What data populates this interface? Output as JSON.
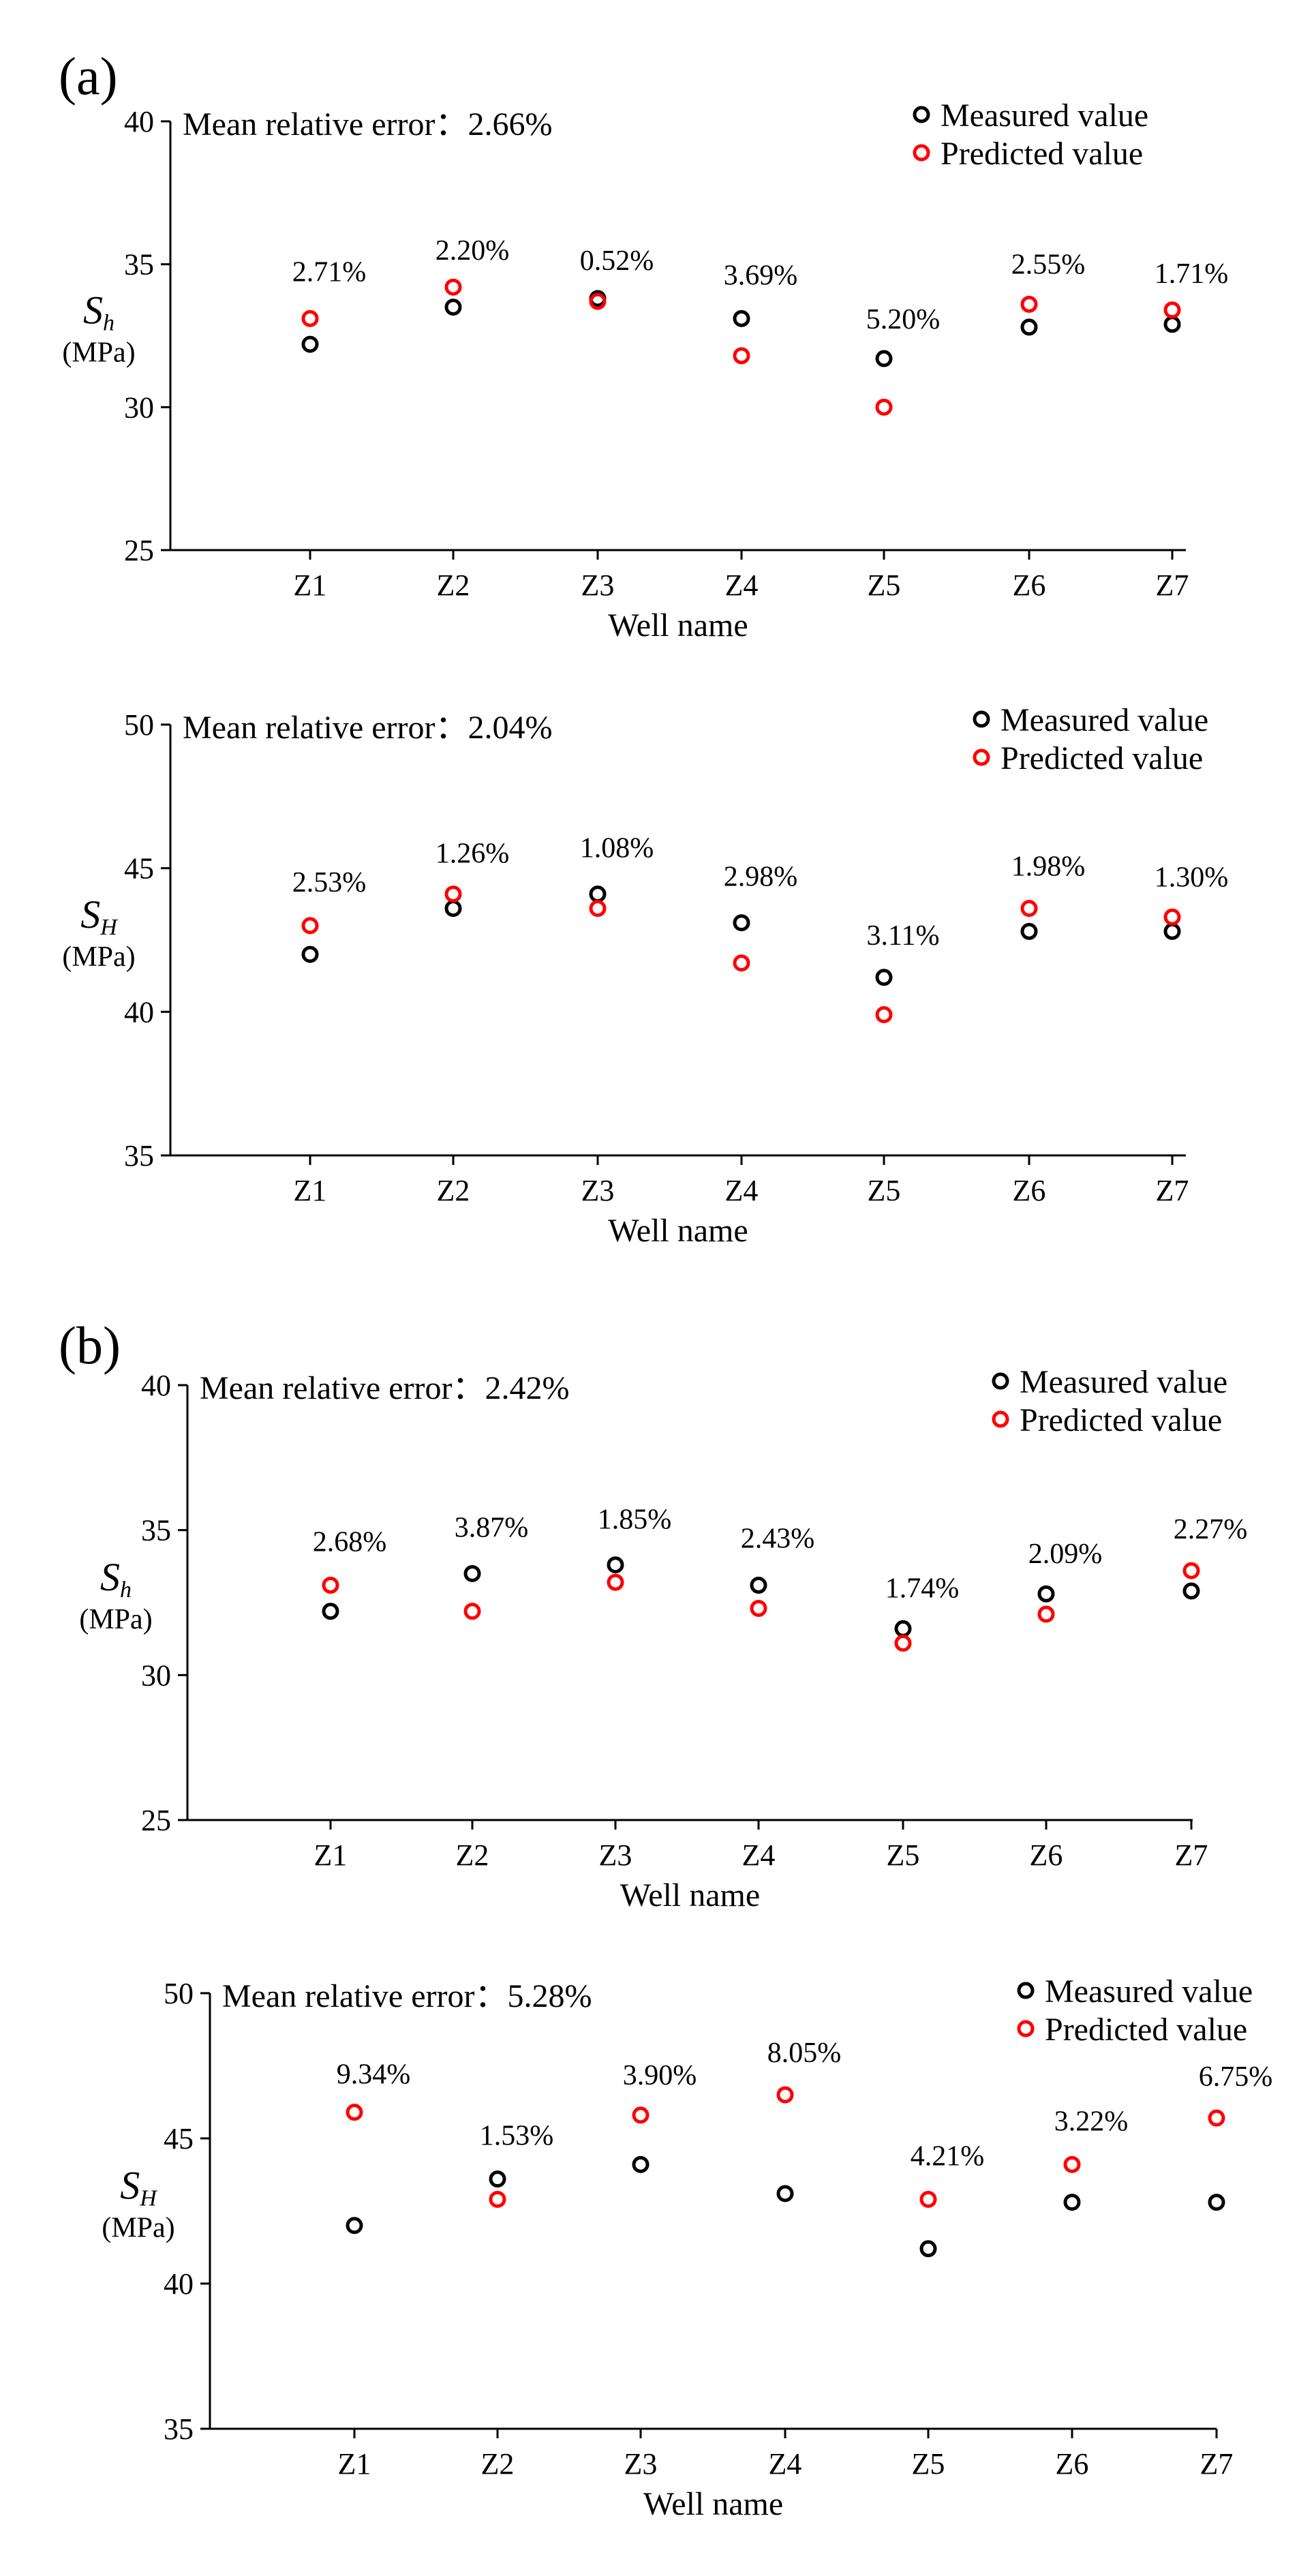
{
  "panel_labels": [
    "(a)",
    "(b)"
  ],
  "chart_data": [
    {
      "type": "scatter",
      "panel": "(a)",
      "annotation_label": "Mean relative error：",
      "annotation_value": "2.66%",
      "ylabel_main": "S",
      "ylabel_sub": "h",
      "ylabel_unit": "(MPa)",
      "xlabel": "Well name",
      "ylim": [
        25,
        40
      ],
      "yticks": [
        "25",
        "30",
        "35",
        "40"
      ],
      "categories": [
        "Z1",
        "Z2",
        "Z3",
        "Z4",
        "Z5",
        "Z6",
        "Z7"
      ],
      "series": [
        {
          "name": "Measured value",
          "color": "#000000",
          "values": [
            32.2,
            33.5,
            33.8,
            33.1,
            31.7,
            32.8,
            32.9
          ]
        },
        {
          "name": "Predicted value",
          "color": "#ff0000",
          "values": [
            33.1,
            34.2,
            33.7,
            31.8,
            30.0,
            33.6,
            33.4
          ]
        }
      ],
      "labels": [
        "2.71%",
        "2.20%",
        "0.52%",
        "3.69%",
        "5.20%",
        "2.55%",
        "1.71%"
      ],
      "legend_position": "top-right"
    },
    {
      "type": "scatter",
      "panel": "(a)",
      "annotation_label": "Mean relative error：",
      "annotation_value": "2.04%",
      "ylabel_main": "S",
      "ylabel_sub": "H",
      "ylabel_unit": "(MPa)",
      "xlabel": "Well name",
      "ylim": [
        35,
        50
      ],
      "yticks": [
        "35",
        "40",
        "45",
        "50"
      ],
      "categories": [
        "Z1",
        "Z2",
        "Z3",
        "Z4",
        "Z5",
        "Z6",
        "Z7"
      ],
      "series": [
        {
          "name": "Measured value",
          "color": "#000000",
          "values": [
            42.0,
            43.6,
            44.1,
            43.1,
            41.2,
            42.8,
            42.8
          ]
        },
        {
          "name": "Predicted value",
          "color": "#ff0000",
          "values": [
            43.0,
            44.1,
            43.6,
            41.7,
            39.9,
            43.6,
            43.3
          ]
        }
      ],
      "labels": [
        "2.53%",
        "1.26%",
        "1.08%",
        "2.98%",
        "3.11%",
        "1.98%",
        "1.30%"
      ],
      "legend_position": "top-right"
    },
    {
      "type": "scatter",
      "panel": "(b)",
      "annotation_label": "Mean relative error：",
      "annotation_value": "2.42%",
      "ylabel_main": "S",
      "ylabel_sub": "h",
      "ylabel_unit": "(MPa)",
      "xlabel": "Well name",
      "ylim": [
        25,
        40
      ],
      "yticks": [
        "25",
        "30",
        "35",
        "40"
      ],
      "categories": [
        "Z1",
        "Z2",
        "Z3",
        "Z4",
        "Z5",
        "Z6",
        "Z7"
      ],
      "series": [
        {
          "name": "Measured value",
          "color": "#000000",
          "values": [
            32.2,
            33.5,
            33.8,
            33.1,
            31.6,
            32.8,
            32.9
          ]
        },
        {
          "name": "Predicted value",
          "color": "#ff0000",
          "values": [
            33.1,
            32.2,
            33.2,
            32.3,
            31.1,
            32.1,
            33.6
          ]
        }
      ],
      "labels": [
        "2.68%",
        "3.87%",
        "1.85%",
        "2.43%",
        "1.74%",
        "2.09%",
        "2.27%"
      ],
      "legend_position": "top-right"
    },
    {
      "type": "scatter",
      "panel": "(b)",
      "annotation_label": "Mean relative error：",
      "annotation_value": "5.28%",
      "ylabel_main": "S",
      "ylabel_sub": "H",
      "ylabel_unit": "(MPa)",
      "xlabel": "Well name",
      "ylim": [
        35,
        50
      ],
      "yticks": [
        "35",
        "40",
        "45",
        "50"
      ],
      "categories": [
        "Z1",
        "Z2",
        "Z3",
        "Z4",
        "Z5",
        "Z6",
        "Z7"
      ],
      "series": [
        {
          "name": "Measured value",
          "color": "#000000",
          "values": [
            42.0,
            43.6,
            44.1,
            43.1,
            41.2,
            42.8,
            42.8
          ]
        },
        {
          "name": "Predicted value",
          "color": "#ff0000",
          "values": [
            45.9,
            42.9,
            45.8,
            46.5,
            42.9,
            44.1,
            45.7
          ]
        }
      ],
      "labels": [
        "9.34%",
        "1.53%",
        "3.90%",
        "8.05%",
        "4.21%",
        "3.22%",
        "6.75%"
      ],
      "legend_position": "top-right"
    }
  ]
}
